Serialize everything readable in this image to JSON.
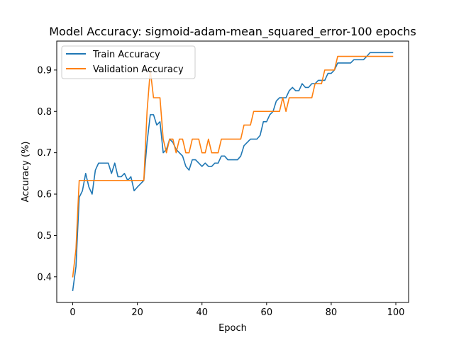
{
  "chart_data": {
    "type": "line",
    "title": "Model Accuracy: sigmoid-adam-mean_squared_error-100 epochs",
    "xlabel": "Epoch",
    "ylabel": "Accuracy (%)",
    "xlim": [
      -4.95,
      103.95
    ],
    "ylim": [
      0.338,
      0.97
    ],
    "xticks": [
      0,
      20,
      40,
      60,
      80,
      100
    ],
    "yticks": [
      0.4,
      0.5,
      0.6,
      0.7,
      0.8,
      0.9
    ],
    "grid": false,
    "legend_position": "upper left",
    "series": [
      {
        "name": "Train Accuracy",
        "color": "#1f77b4",
        "x": [
          0,
          1,
          2,
          3,
          4,
          5,
          6,
          7,
          8,
          9,
          10,
          11,
          12,
          13,
          14,
          15,
          16,
          17,
          18,
          19,
          20,
          21,
          22,
          23,
          24,
          25,
          26,
          27,
          28,
          29,
          30,
          31,
          32,
          33,
          34,
          35,
          36,
          37,
          38,
          39,
          40,
          41,
          42,
          43,
          44,
          45,
          46,
          47,
          48,
          49,
          50,
          51,
          52,
          53,
          54,
          55,
          56,
          57,
          58,
          59,
          60,
          61,
          62,
          63,
          64,
          65,
          66,
          67,
          68,
          69,
          70,
          71,
          72,
          73,
          74,
          75,
          76,
          77,
          78,
          79,
          80,
          81,
          82,
          83,
          84,
          85,
          86,
          87,
          88,
          89,
          90,
          91,
          92,
          93,
          94,
          95,
          96,
          97,
          98,
          99
        ],
        "values": [
          0.367,
          0.425,
          0.592,
          0.608,
          0.65,
          0.617,
          0.6,
          0.658,
          0.675,
          0.675,
          0.675,
          0.675,
          0.65,
          0.675,
          0.642,
          0.642,
          0.65,
          0.633,
          0.642,
          0.608,
          0.617,
          0.625,
          0.633,
          0.725,
          0.792,
          0.792,
          0.767,
          0.775,
          0.7,
          0.708,
          0.733,
          0.725,
          0.708,
          0.7,
          0.692,
          0.667,
          0.658,
          0.683,
          0.683,
          0.675,
          0.667,
          0.675,
          0.667,
          0.667,
          0.675,
          0.675,
          0.692,
          0.692,
          0.683,
          0.683,
          0.683,
          0.683,
          0.692,
          0.717,
          0.725,
          0.733,
          0.733,
          0.733,
          0.742,
          0.775,
          0.775,
          0.792,
          0.8,
          0.825,
          0.833,
          0.833,
          0.833,
          0.85,
          0.858,
          0.85,
          0.85,
          0.867,
          0.858,
          0.858,
          0.867,
          0.867,
          0.875,
          0.875,
          0.875,
          0.892,
          0.892,
          0.9,
          0.917,
          0.917,
          0.917,
          0.917,
          0.917,
          0.925,
          0.925,
          0.925,
          0.925,
          0.933,
          0.942,
          0.942,
          0.942,
          0.942,
          0.942,
          0.942,
          0.942,
          0.942
        ]
      },
      {
        "name": "Validation Accuracy",
        "color": "#ff7f0e",
        "x": [
          0,
          1,
          2,
          3,
          4,
          5,
          6,
          7,
          8,
          9,
          10,
          11,
          12,
          13,
          14,
          15,
          16,
          17,
          18,
          19,
          20,
          21,
          22,
          23,
          24,
          25,
          26,
          27,
          28,
          29,
          30,
          31,
          32,
          33,
          34,
          35,
          36,
          37,
          38,
          39,
          40,
          41,
          42,
          43,
          44,
          45,
          46,
          47,
          48,
          49,
          50,
          51,
          52,
          53,
          54,
          55,
          56,
          57,
          58,
          59,
          60,
          61,
          62,
          63,
          64,
          65,
          66,
          67,
          68,
          69,
          70,
          71,
          72,
          73,
          74,
          75,
          76,
          77,
          78,
          79,
          80,
          81,
          82,
          83,
          84,
          85,
          86,
          87,
          88,
          89,
          90,
          91,
          92,
          93,
          94,
          95,
          96,
          97,
          98,
          99
        ],
        "values": [
          0.4,
          0.467,
          0.633,
          0.633,
          0.633,
          0.633,
          0.633,
          0.633,
          0.633,
          0.633,
          0.633,
          0.633,
          0.633,
          0.633,
          0.633,
          0.633,
          0.633,
          0.633,
          0.633,
          0.633,
          0.633,
          0.633,
          0.633,
          0.8,
          0.9,
          0.833,
          0.833,
          0.833,
          0.733,
          0.7,
          0.733,
          0.733,
          0.7,
          0.733,
          0.733,
          0.7,
          0.7,
          0.733,
          0.733,
          0.733,
          0.7,
          0.7,
          0.733,
          0.7,
          0.7,
          0.7,
          0.733,
          0.733,
          0.733,
          0.733,
          0.733,
          0.733,
          0.733,
          0.767,
          0.767,
          0.767,
          0.8,
          0.8,
          0.8,
          0.8,
          0.8,
          0.8,
          0.8,
          0.8,
          0.8,
          0.833,
          0.8,
          0.833,
          0.833,
          0.833,
          0.833,
          0.833,
          0.833,
          0.833,
          0.833,
          0.867,
          0.867,
          0.867,
          0.9,
          0.9,
          0.9,
          0.9,
          0.933,
          0.933,
          0.933,
          0.933,
          0.933,
          0.933,
          0.933,
          0.933,
          0.933,
          0.933,
          0.933,
          0.933,
          0.933,
          0.933,
          0.933,
          0.933,
          0.933,
          0.933
        ]
      }
    ]
  }
}
